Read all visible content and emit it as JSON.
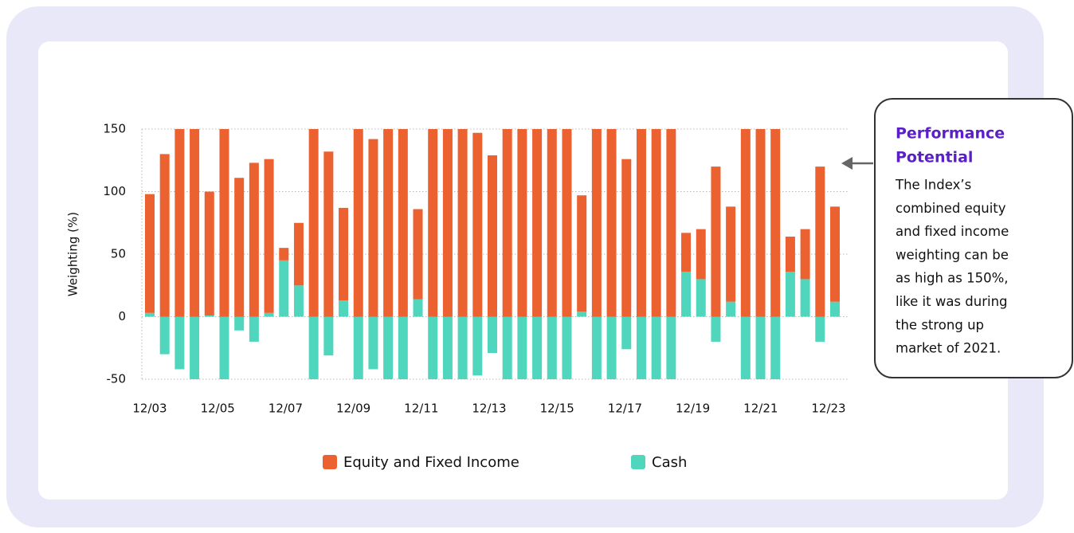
{
  "chart_data": {
    "type": "bar",
    "stacked": true,
    "y_label": "Weighting (%)",
    "ylim": [
      -50,
      150
    ],
    "yticks": [
      150,
      100,
      50,
      0,
      -50
    ],
    "grid": true,
    "x_labels": [
      "12/03",
      "12/05",
      "12/07",
      "12/09",
      "12/11",
      "12/13",
      "12/15",
      "12/17",
      "12/19",
      "12/21",
      "12/23"
    ],
    "series": [
      {
        "name": "Cash",
        "color": "#4fd6bd",
        "values": [
          3,
          -30,
          -42,
          -50,
          1,
          -50,
          -11,
          -20,
          3,
          45,
          25,
          -50,
          -31,
          13,
          -50,
          -42,
          -50,
          -50,
          14,
          -50,
          -50,
          -50,
          -47,
          -29,
          -50,
          -50,
          -50,
          -50,
          -50,
          4,
          -50,
          -50,
          -26,
          -50,
          -50,
          -50,
          36,
          30,
          -20,
          12,
          -50,
          -50,
          -50,
          36,
          30,
          -20,
          12
        ]
      },
      {
        "name": "Equity and Fixed Income",
        "color": "#ec6130",
        "values": [
          95,
          130,
          150,
          150,
          99,
          150,
          111,
          123,
          123,
          10,
          50,
          150,
          132,
          74,
          150,
          142,
          150,
          150,
          72,
          150,
          150,
          150,
          147,
          129,
          150,
          150,
          150,
          150,
          150,
          93,
          150,
          150,
          126,
          150,
          150,
          150,
          31,
          40,
          120,
          76,
          150,
          150,
          150,
          28,
          40,
          120,
          76
        ]
      }
    ],
    "legend_order": [
      1,
      0
    ],
    "annotation": {
      "title": [
        "Performance",
        "Potential"
      ],
      "lines": [
        "The Index’s",
        "combined equity",
        "and fixed income",
        "weighting can be",
        "as high as 150%,",
        "like it was during",
        "the strong up",
        "market of 2021."
      ]
    }
  }
}
